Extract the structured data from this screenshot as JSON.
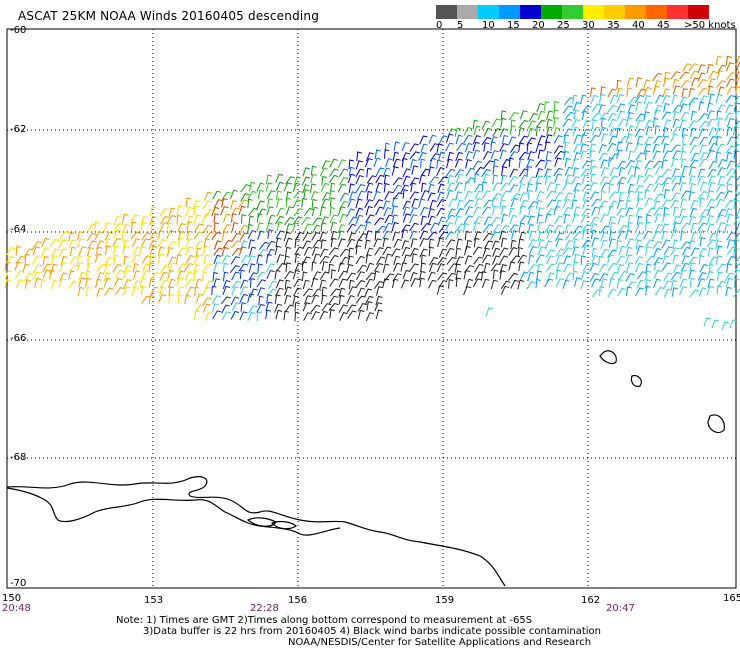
{
  "title": "ASCAT 25KM NOAA Winds 20160405 descending",
  "legend": {
    "colors": [
      "#555555",
      "#aaaaaa",
      "#00ccff",
      "#0099ff",
      "#0000cc",
      "#00aa00",
      "#33cc33",
      "#ffee00",
      "#ffcc00",
      "#ff9900",
      "#ff6600",
      "#ff3333",
      "#cc0000",
      "#884400",
      "#aa6633",
      "#ff00ff",
      "#cc00cc",
      "#9900cc",
      "#6600aa",
      "#330066"
    ],
    "labels": [
      "0",
      "5",
      "10",
      "15",
      "20",
      "25",
      "30",
      "35",
      "40",
      "45",
      ">50 knots"
    ]
  },
  "lat_labels": [
    "-60",
    "-62",
    "-64",
    "-66",
    "-68",
    "-70"
  ],
  "lon_labels": [
    "150",
    "153",
    "156",
    "159",
    "162",
    "165"
  ],
  "time_labels": [
    "20:48",
    "22:28",
    "20:47"
  ],
  "notes": [
    "Note: 1) Times are GMT 2)Times along bottom correspond to measurement at -65S",
    "3)Data buffer is 22 hrs from 20160405 4) Black wind barbs indicate possible contamination",
    "NOAA/NESDIS/Center for Satellite Applications and Research"
  ]
}
